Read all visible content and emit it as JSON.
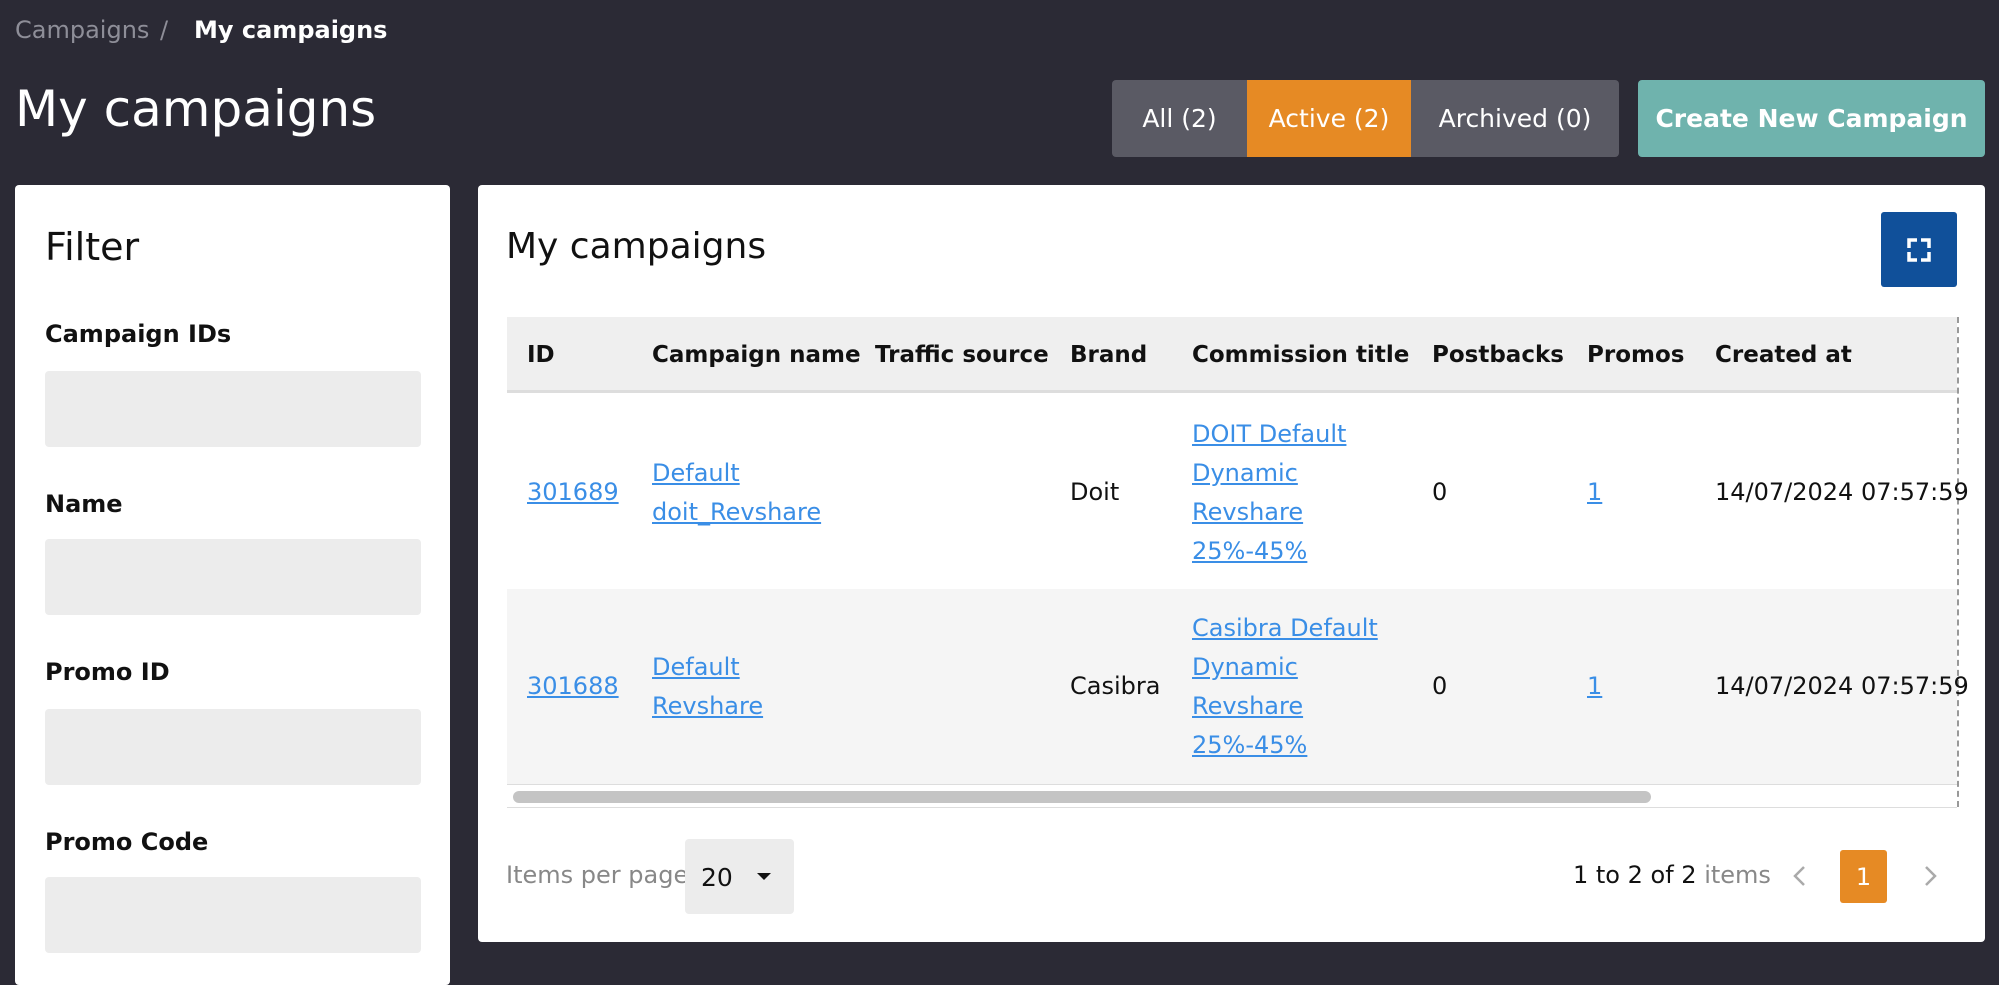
{
  "breadcrumb": {
    "parent": "Campaigns",
    "separator": "/",
    "current": "My campaigns"
  },
  "header": {
    "title": "My campaigns",
    "tabs": [
      "All (2)",
      "Active (2)",
      "Archived (0)"
    ],
    "create_button": "Create New Campaign"
  },
  "filter": {
    "title": "Filter",
    "fields": [
      "Campaign IDs",
      "Name",
      "Promo ID",
      "Promo Code"
    ]
  },
  "table": {
    "title": "My campaigns",
    "columns": [
      "ID",
      "Campaign name",
      "Traffic source",
      "Brand",
      "Commission title",
      "Postbacks",
      "Promos",
      "Created at"
    ],
    "rows": [
      [
        "301689",
        "Default doit_Revshare",
        "",
        "Doit",
        "DOIT Default Dynamic Revshare 25%-45%",
        "0",
        "1",
        "14/07/2024 07:57:59"
      ],
      [
        "301688",
        "Default Revshare",
        "",
        "Casibra",
        "Casibra Default Dynamic Revshare 25%-45%",
        "0",
        "1",
        "14/07/2024 07:57:59"
      ]
    ]
  },
  "pagination": {
    "items_per_page_label": "Items per page",
    "items_per_page": "20",
    "range": "1 to 2 of 2",
    "range_suffix": "items",
    "page": "1"
  }
}
